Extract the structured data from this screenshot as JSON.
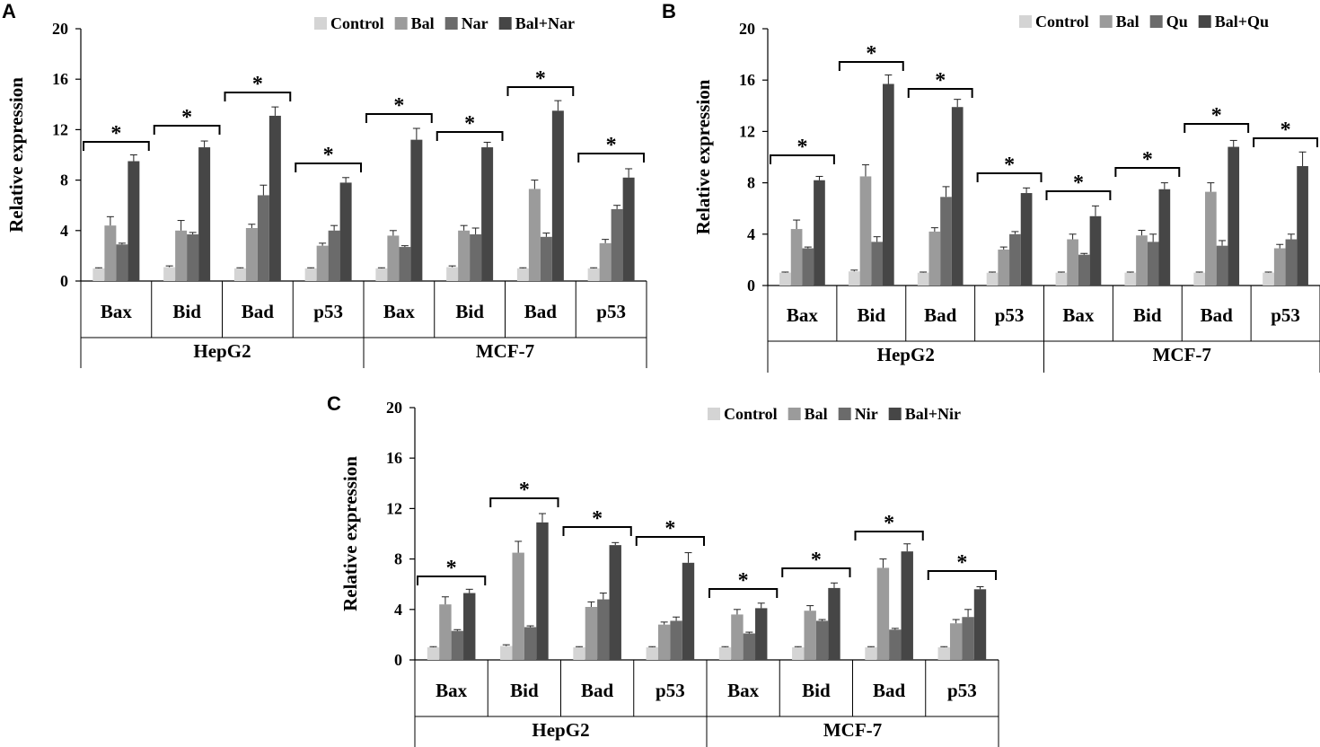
{
  "colors": {
    "control": "#d4d4d4",
    "bal": "#9b9b9b",
    "third": "#6b6b6b",
    "combo": "#464646",
    "axis": "#000000"
  },
  "chart_data": [
    {
      "panel": "A",
      "type": "bar",
      "ylabel": "Relative expression",
      "ylim": [
        0,
        20
      ],
      "yticks": [
        0,
        4,
        8,
        12,
        16,
        20
      ],
      "groups": [
        "HepG2",
        "MCF-7"
      ],
      "categories": [
        "Bax",
        "Bid",
        "Bad",
        "p53",
        "Bax",
        "Bid",
        "Bad",
        "p53"
      ],
      "significance_marker": "*",
      "series": [
        {
          "name": "Control",
          "values": [
            1.0,
            1.1,
            1.0,
            1.0,
            1.0,
            1.1,
            1.0,
            1.0
          ],
          "errors": [
            0.05,
            0.1,
            0.05,
            0.05,
            0.05,
            0.1,
            0.05,
            0.05
          ]
        },
        {
          "name": "Bal",
          "values": [
            4.4,
            4.0,
            4.2,
            2.8,
            3.6,
            4.0,
            7.3,
            3.0
          ],
          "errors": [
            0.7,
            0.8,
            0.3,
            0.2,
            0.4,
            0.4,
            0.7,
            0.3
          ]
        },
        {
          "name": "Nar",
          "values": [
            2.9,
            3.7,
            6.8,
            4.0,
            2.7,
            3.7,
            3.5,
            5.7
          ],
          "errors": [
            0.1,
            0.15,
            0.8,
            0.4,
            0.1,
            0.5,
            0.3,
            0.3
          ]
        },
        {
          "name": "Bal+Nar",
          "values": [
            9.5,
            10.6,
            13.1,
            7.8,
            11.2,
            10.6,
            13.5,
            8.2
          ],
          "errors": [
            0.5,
            0.5,
            0.7,
            0.4,
            0.9,
            0.4,
            0.8,
            0.7
          ]
        }
      ]
    },
    {
      "panel": "B",
      "type": "bar",
      "ylabel": "Relative expression",
      "ylim": [
        0,
        20
      ],
      "yticks": [
        0,
        4,
        8,
        12,
        16,
        20
      ],
      "groups": [
        "HepG2",
        "MCF-7"
      ],
      "categories": [
        "Bax",
        "Bid",
        "Bad",
        "p53",
        "Bax",
        "Bid",
        "Bad",
        "p53"
      ],
      "significance_marker": "*",
      "series": [
        {
          "name": "Control",
          "values": [
            1.0,
            1.1,
            1.0,
            1.0,
            1.0,
            1.0,
            1.0,
            1.0
          ],
          "errors": [
            0.05,
            0.1,
            0.05,
            0.05,
            0.05,
            0.05,
            0.05,
            0.05
          ]
        },
        {
          "name": "Bal",
          "values": [
            4.4,
            8.5,
            4.2,
            2.8,
            3.6,
            3.9,
            7.3,
            2.9
          ],
          "errors": [
            0.7,
            0.9,
            0.3,
            0.2,
            0.4,
            0.4,
            0.7,
            0.3
          ]
        },
        {
          "name": "Qu",
          "values": [
            2.9,
            3.4,
            6.9,
            4.0,
            2.4,
            3.4,
            3.1,
            3.6
          ],
          "errors": [
            0.1,
            0.4,
            0.8,
            0.2,
            0.1,
            0.6,
            0.4,
            0.4
          ]
        },
        {
          "name": "Bal+Qu",
          "values": [
            8.2,
            15.7,
            13.9,
            7.2,
            5.4,
            7.5,
            10.8,
            9.3
          ],
          "errors": [
            0.3,
            0.7,
            0.6,
            0.4,
            0.8,
            0.5,
            0.5,
            1.1
          ]
        }
      ]
    },
    {
      "panel": "C",
      "type": "bar",
      "ylabel": "Relative expression",
      "ylim": [
        0,
        20
      ],
      "yticks": [
        0,
        4,
        8,
        12,
        16,
        20
      ],
      "groups": [
        "HepG2",
        "MCF-7"
      ],
      "categories": [
        "Bax",
        "Bid",
        "Bad",
        "p53",
        "Bax",
        "Bid",
        "Bad",
        "p53"
      ],
      "significance_marker": "*",
      "series": [
        {
          "name": "Control",
          "values": [
            1.0,
            1.1,
            1.0,
            1.0,
            1.0,
            1.0,
            1.0,
            1.0
          ],
          "errors": [
            0.05,
            0.1,
            0.05,
            0.05,
            0.05,
            0.05,
            0.05,
            0.05
          ]
        },
        {
          "name": "Bal",
          "values": [
            4.4,
            8.5,
            4.2,
            2.8,
            3.6,
            3.9,
            7.3,
            2.9
          ],
          "errors": [
            0.6,
            0.9,
            0.4,
            0.2,
            0.4,
            0.4,
            0.7,
            0.3
          ]
        },
        {
          "name": "Nir",
          "values": [
            2.3,
            2.6,
            4.8,
            3.1,
            2.1,
            3.1,
            2.4,
            3.4
          ],
          "errors": [
            0.1,
            0.1,
            0.5,
            0.3,
            0.1,
            0.1,
            0.1,
            0.6
          ]
        },
        {
          "name": "Bal+Nir",
          "values": [
            5.3,
            10.9,
            9.1,
            7.7,
            4.1,
            5.7,
            8.6,
            5.6
          ],
          "errors": [
            0.3,
            0.7,
            0.2,
            0.8,
            0.4,
            0.4,
            0.6,
            0.2
          ]
        }
      ]
    }
  ]
}
